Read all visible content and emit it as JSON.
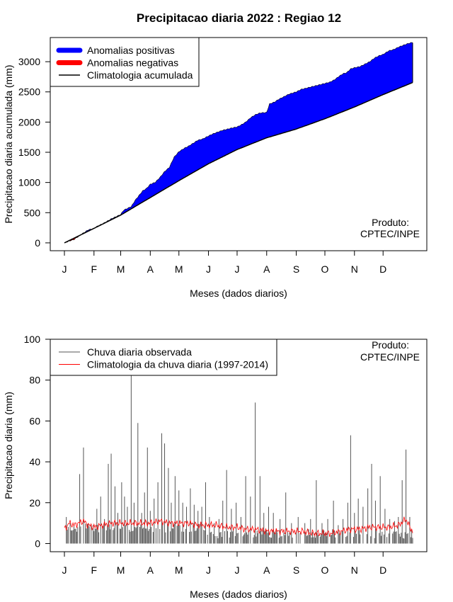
{
  "title": "Precipitacao diaria 2022 : Regiao 12",
  "chart_data": [
    {
      "type": "area",
      "ylabel": "Precipitacao diaria acumulada (mm)",
      "xlabel": "Meses (dados diarios)",
      "xlim": [
        0,
        365
      ],
      "ylim": [
        -130,
        3400
      ],
      "yticks": [
        0,
        500,
        1000,
        1500,
        2000,
        2500,
        3000
      ],
      "month_labels": [
        "J",
        "F",
        "M",
        "A",
        "M",
        "J",
        "J",
        "A",
        "S",
        "O",
        "N",
        "D"
      ],
      "month_start_days": [
        0,
        31,
        59,
        90,
        120,
        151,
        181,
        212,
        243,
        273,
        304,
        334
      ],
      "legend": {
        "position": "top-left",
        "items": [
          {
            "label": "Anomalias positivas",
            "color": "#0000ff"
          },
          {
            "label": "Anomalias negativas",
            "color": "#ff0000"
          },
          {
            "label": "Climatologia acumulada",
            "color": "#000000"
          }
        ]
      },
      "annotation": [
        "Produto:",
        "CPTEC/INPE"
      ],
      "series": [
        {
          "name": "Climatologia acumulada",
          "days": [
            0,
            31,
            59,
            90,
            120,
            151,
            181,
            212,
            243,
            273,
            304,
            334,
            365
          ],
          "values": [
            0,
            240,
            460,
            750,
            1030,
            1310,
            1545,
            1740,
            1885,
            2055,
            2250,
            2455,
            2655
          ]
        },
        {
          "name": "Observada acumulada",
          "days": [
            0,
            5,
            10,
            15,
            20,
            25,
            31,
            35,
            40,
            45,
            50,
            55,
            59,
            62,
            66,
            70,
            74,
            78,
            82,
            86,
            90,
            95,
            100,
            105,
            110,
            115,
            120,
            125,
            130,
            135,
            140,
            145,
            151,
            155,
            160,
            165,
            170,
            175,
            181,
            186,
            190,
            195,
            200,
            205,
            212,
            215,
            220,
            225,
            230,
            235,
            243,
            248,
            253,
            258,
            263,
            268,
            273,
            278,
            283,
            288,
            292,
            296,
            300,
            304,
            310,
            315,
            320,
            325,
            330,
            334,
            340,
            345,
            350,
            355,
            360,
            365
          ],
          "values": [
            0,
            30,
            55,
            110,
            165,
            215,
            240,
            280,
            315,
            360,
            405,
            440,
            470,
            540,
            570,
            600,
            700,
            780,
            860,
            900,
            970,
            1000,
            1080,
            1180,
            1250,
            1420,
            1510,
            1560,
            1600,
            1650,
            1700,
            1720,
            1770,
            1800,
            1830,
            1860,
            1880,
            1900,
            1920,
            1960,
            2000,
            2070,
            2120,
            2150,
            2160,
            2300,
            2330,
            2380,
            2420,
            2460,
            2500,
            2540,
            2560,
            2580,
            2600,
            2620,
            2640,
            2660,
            2700,
            2760,
            2800,
            2820,
            2880,
            2900,
            2920,
            2960,
            3000,
            3060,
            3100,
            3120,
            3180,
            3200,
            3240,
            3270,
            3300,
            3320
          ]
        }
      ]
    },
    {
      "type": "line",
      "ylabel": "Precipitacao diaria (mm)",
      "xlabel": "Meses (dados diarios)",
      "xlim": [
        0,
        365
      ],
      "ylim": [
        -4,
        100
      ],
      "yticks": [
        0,
        20,
        40,
        60,
        80,
        100
      ],
      "month_labels": [
        "J",
        "F",
        "M",
        "A",
        "M",
        "J",
        "J",
        "A",
        "S",
        "O",
        "N",
        "D"
      ],
      "month_start_days": [
        0,
        31,
        59,
        90,
        120,
        151,
        181,
        212,
        243,
        273,
        304,
        334
      ],
      "legend": {
        "position": "top-left",
        "items": [
          {
            "label": "Chuva diaria observada",
            "color": "#555555"
          },
          {
            "label": "Climatologia da chuva diaria (1997-2014)",
            "color": "#ff0000"
          }
        ]
      },
      "annotation": [
        "Produto:",
        "CPTEC/INPE"
      ],
      "series": [
        {
          "name": "Chuva diaria observada",
          "peaks": [
            [
              2,
              13
            ],
            [
              6,
              10
            ],
            [
              10,
              9
            ],
            [
              14,
              8
            ],
            [
              16,
              34
            ],
            [
              20,
              47
            ],
            [
              25,
              10
            ],
            [
              30,
              9
            ],
            [
              34,
              17
            ],
            [
              38,
              23
            ],
            [
              42,
              12
            ],
            [
              46,
              39
            ],
            [
              49,
              44
            ],
            [
              53,
              28
            ],
            [
              56,
              15
            ],
            [
              60,
              30
            ],
            [
              63,
              23
            ],
            [
              66,
              18
            ],
            [
              70,
              83
            ],
            [
              73,
              20
            ],
            [
              77,
              59
            ],
            [
              81,
              15
            ],
            [
              84,
              25
            ],
            [
              87,
              47
            ],
            [
              90,
              16
            ],
            [
              94,
              22
            ],
            [
              98,
              30
            ],
            [
              102,
              54
            ],
            [
              105,
              49
            ],
            [
              109,
              37
            ],
            [
              112,
              20
            ],
            [
              116,
              33
            ],
            [
              120,
              26
            ],
            [
              124,
              20
            ],
            [
              128,
              18
            ],
            [
              132,
              27
            ],
            [
              136,
              19
            ],
            [
              140,
              16
            ],
            [
              144,
              18
            ],
            [
              148,
              30
            ],
            [
              152,
              13
            ],
            [
              157,
              10
            ],
            [
              162,
              12
            ],
            [
              166,
              21
            ],
            [
              170,
              36
            ],
            [
              175,
              17
            ],
            [
              180,
              20
            ],
            [
              185,
              13
            ],
            [
              190,
              33
            ],
            [
              195,
              23
            ],
            [
              200,
              69
            ],
            [
              205,
              33
            ],
            [
              209,
              15
            ],
            [
              214,
              18
            ],
            [
              219,
              15
            ],
            [
              226,
              12
            ],
            [
              232,
              25
            ],
            [
              238,
              10
            ],
            [
              245,
              13
            ],
            [
              252,
              10
            ],
            [
              258,
              12
            ],
            [
              264,
              31
            ],
            [
              270,
              10
            ],
            [
              276,
              12
            ],
            [
              282,
              21
            ],
            [
              287,
              9
            ],
            [
              292,
              12
            ],
            [
              297,
              20
            ],
            [
              300,
              53
            ],
            [
              304,
              15
            ],
            [
              308,
              22
            ],
            [
              313,
              18
            ],
            [
              318,
              27
            ],
            [
              322,
              39
            ],
            [
              326,
              21
            ],
            [
              331,
              33
            ],
            [
              336,
              17
            ],
            [
              341,
              12
            ],
            [
              346,
              11
            ],
            [
              350,
              13
            ],
            [
              354,
              31
            ],
            [
              358,
              46
            ],
            [
              362,
              13
            ]
          ]
        },
        {
          "name": "Climatologia da chuva diaria (1997-2014)",
          "days": [
            0,
            5,
            10,
            15,
            20,
            25,
            31,
            40,
            50,
            59,
            70,
            80,
            90,
            100,
            110,
            120,
            130,
            140,
            151,
            160,
            170,
            181,
            190,
            200,
            212,
            220,
            230,
            243,
            250,
            260,
            273,
            280,
            290,
            300,
            304,
            310,
            320,
            334,
            340,
            350,
            358,
            362,
            365
          ],
          "values": [
            7,
            10,
            9,
            10,
            11,
            9,
            8,
            9,
            10,
            10,
            10,
            10,
            10,
            11,
            10,
            10,
            10,
            9,
            9,
            9,
            8,
            8,
            7,
            7,
            6,
            6,
            6,
            6,
            6,
            5,
            5,
            5,
            6,
            7,
            7,
            7,
            8,
            8,
            8,
            9,
            12,
            8,
            6
          ]
        }
      ]
    }
  ]
}
